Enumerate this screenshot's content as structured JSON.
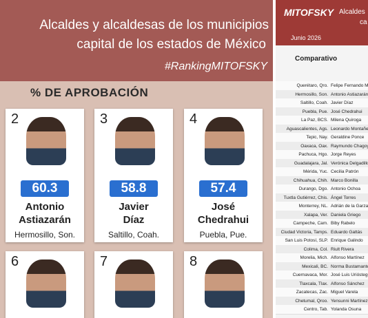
{
  "header": {
    "title_lines": [
      "Alcaldes y alcaldesas de los municipios",
      "capital de los estados de México"
    ],
    "hashtag": "#RankingMITOFSKY"
  },
  "section_title": "% DE APROBACIÓN",
  "cards": [
    {
      "rank": "2",
      "score": "60.3",
      "name_lines": [
        "Antonio",
        "Astiazarán"
      ],
      "location": "Hermosillo, Son."
    },
    {
      "rank": "3",
      "score": "58.8",
      "name_lines": [
        "Javier",
        "Díaz"
      ],
      "location": "Saltillo, Coah."
    },
    {
      "rank": "4",
      "score": "57.4",
      "name_lines": [
        "José",
        "Chedrahui"
      ],
      "location": "Puebla, Pue."
    },
    {
      "rank": "6"
    },
    {
      "rank": "7"
    },
    {
      "rank": "8"
    }
  ],
  "side": {
    "logo": "MITOFSKY",
    "date": "Junio 2026",
    "title_lines": [
      "Alcaldes",
      "ca"
    ],
    "subtitle": "Comparativo",
    "rows": [
      [
        "Querétaro, Qro.",
        "Felipe Fernando Ma"
      ],
      [
        "Hermosillo, Son.",
        "Antonio Astiazarán"
      ],
      [
        "Saltillo, Coah.",
        "Javier Díaz"
      ],
      [
        "Puebla, Pue.",
        "José Chedrahui"
      ],
      [
        "La Paz, BCS.",
        "Milena Quiroga"
      ],
      [
        "Aguascalientes, Ags.",
        "Leonardo Montañez"
      ],
      [
        "Tepic, Nay.",
        "Geraldine Ponce"
      ],
      [
        "Oaxaca, Oax.",
        "Raymundo Chagoya"
      ],
      [
        "Pachuca, Hgo.",
        "Jorge Reyes"
      ],
      [
        "Guadalajara, Jal.",
        "Verónica Delgadillo"
      ],
      [
        "Mérida, Yuc.",
        "Cecilia Patrón"
      ],
      [
        "Chihuahua, Chih.",
        "Marco Bonilla"
      ],
      [
        "Durango, Dgo.",
        "Antonio Ochoa"
      ],
      [
        "Tuxtla Gutiérrez, Chis.",
        "Ángel Torres"
      ],
      [
        "Monterrey, NL.",
        "Adrián de la Garza"
      ],
      [
        "Xalapa, Ver.",
        "Daniela Griego"
      ],
      [
        "Campeche, Cam.",
        "Biby Rabelo"
      ],
      [
        "Ciudad Victoria, Tamps.",
        "Eduardo Gattás"
      ],
      [
        "San Luis Potosí, SLP.",
        "Enrique Galindo"
      ],
      [
        "Colima, Col.",
        "Riult Rivera"
      ],
      [
        "Morelia, Mich.",
        "Alfonso Martínez"
      ],
      [
        "Mexicali, BC.",
        "Norma Bustamante"
      ],
      [
        "Cuernavaca, Mor.",
        "José Luis Urióstegu"
      ],
      [
        "Tlaxcala, Tlax.",
        "Alfonso Sánchez"
      ],
      [
        "Zacatecas, Zac.",
        "Miguel Varela"
      ],
      [
        "Chetumal, Qroo.",
        "Yensunni Martínez"
      ],
      [
        "Centro, Tab.",
        "Yolanda Osuna"
      ]
    ]
  }
}
